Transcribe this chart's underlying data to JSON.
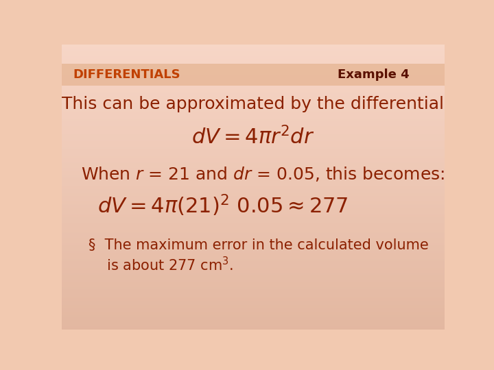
{
  "bg_color": "#f2c9b0",
  "header_stripe_color": "#e8b898",
  "text_color_main": "#8b2000",
  "text_color_diff": "#c04000",
  "text_color_ex": "#5a1000",
  "title_left": "DIFFERENTIALS",
  "title_right": "Example 4",
  "line1": "This can be approximated by the differential",
  "formula1": "$\\it{d}V = 4\\pi r^{2}\\it{d}r$",
  "line3": "When $\\it{r}$ = 21 and $\\it{d}r$ = 0.05, this becomes:",
  "formula2": "$\\it{d}V = 4\\pi(21)^{2}\\ 0.05 \\approx 277$",
  "bullet1": "§  The maximum error in the calculated volume",
  "bullet2": "    is about 277 cm$^{3}$.",
  "header_font_size": 13,
  "main_font_size": 18,
  "eq_font_size": 22,
  "bullet_font_size": 15
}
